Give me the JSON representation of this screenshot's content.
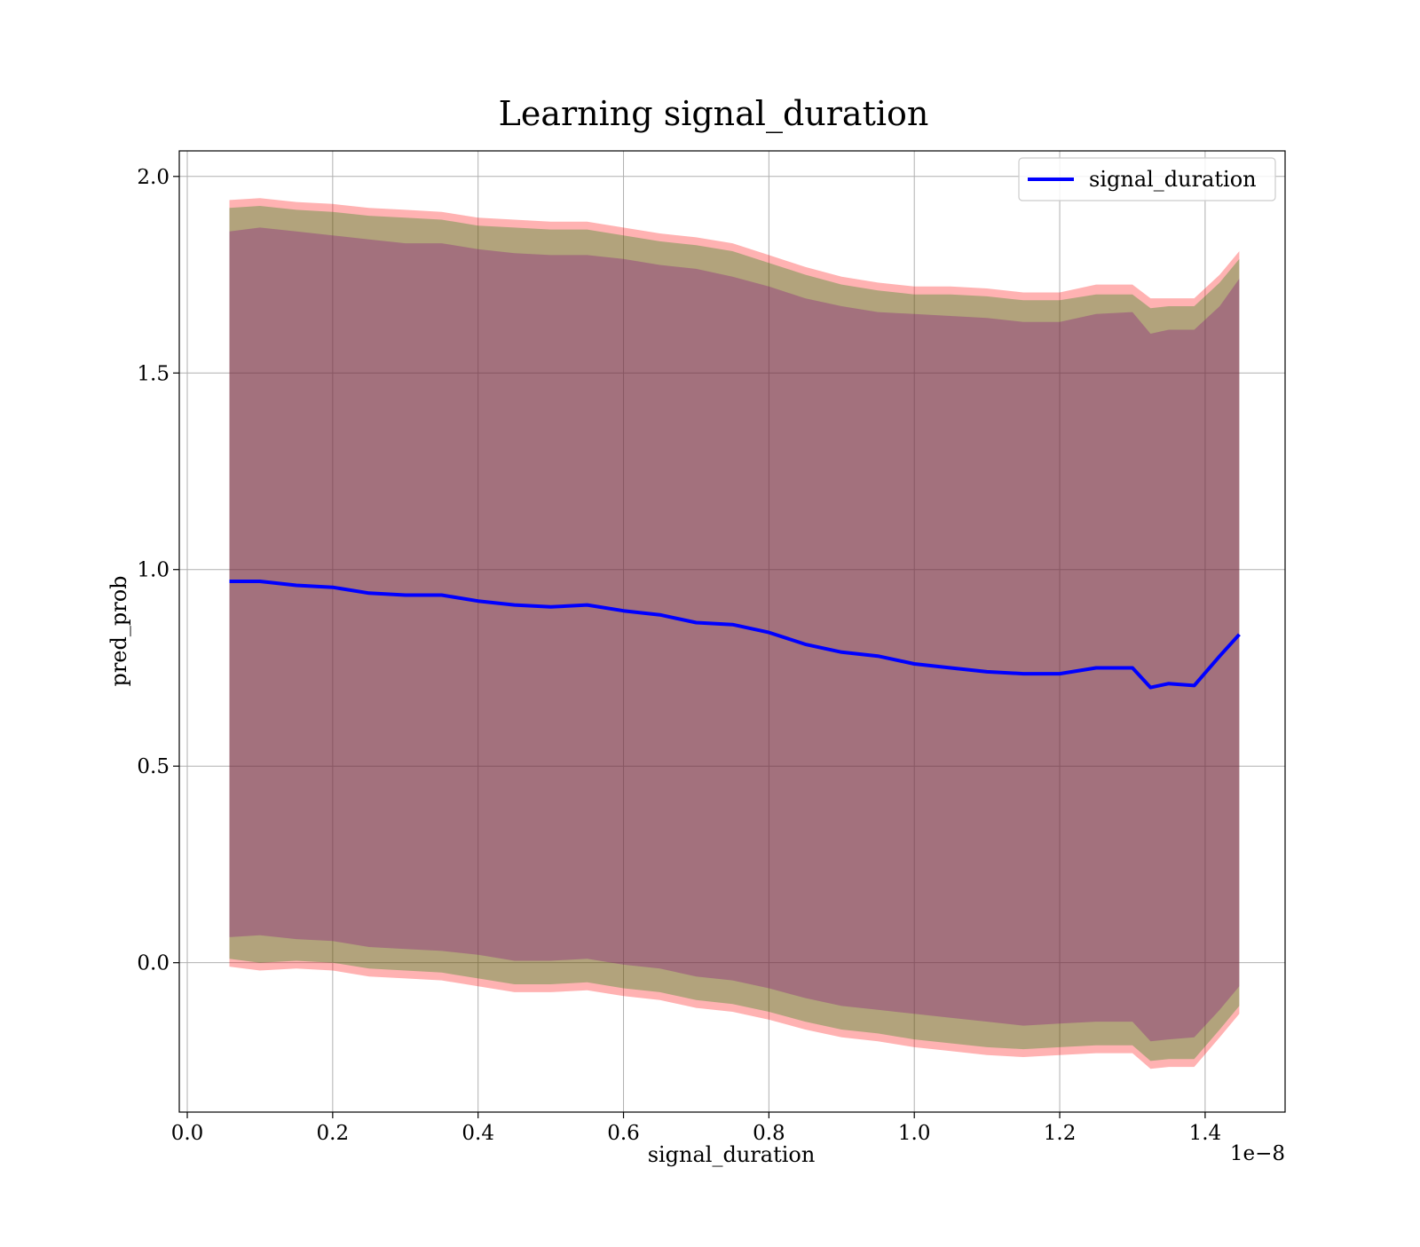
{
  "chart_data": {
    "type": "area",
    "title": "Learning signal_duration",
    "xlabel": "signal_duration",
    "ylabel": "pred_prob",
    "x_offset_text": "1e−8",
    "xlim": [
      -0.011,
      1.51
    ],
    "ylim": [
      -0.38,
      2.065
    ],
    "x_ticks": [
      0.0,
      0.2,
      0.4,
      0.6,
      0.8,
      1.0,
      1.2,
      1.4
    ],
    "x_tick_labels": [
      "0.0",
      "0.2",
      "0.4",
      "0.6",
      "0.8",
      "1.0",
      "1.2",
      "1.4"
    ],
    "y_ticks": [
      0.0,
      0.5,
      1.0,
      1.5,
      2.0
    ],
    "y_tick_labels": [
      "0.0",
      "0.5",
      "1.0",
      "1.5",
      "2.0"
    ],
    "grid": true,
    "legend_position": "top-right",
    "series": [
      {
        "name": "signal_duration",
        "color": "#0000ff",
        "x": [
          0.058,
          0.1,
          0.15,
          0.2,
          0.25,
          0.3,
          0.35,
          0.4,
          0.45,
          0.5,
          0.55,
          0.6,
          0.65,
          0.7,
          0.75,
          0.8,
          0.85,
          0.9,
          0.95,
          1.0,
          1.05,
          1.1,
          1.15,
          1.2,
          1.25,
          1.3,
          1.325,
          1.35,
          1.385,
          1.42,
          1.447
        ],
        "y": [
          0.97,
          0.97,
          0.96,
          0.955,
          0.94,
          0.935,
          0.935,
          0.92,
          0.91,
          0.905,
          0.91,
          0.895,
          0.885,
          0.865,
          0.86,
          0.84,
          0.81,
          0.79,
          0.78,
          0.76,
          0.75,
          0.74,
          0.735,
          0.735,
          0.75,
          0.75,
          0.7,
          0.71,
          0.705,
          0.78,
          0.835
        ]
      }
    ],
    "bands": [
      {
        "color": "#ff0000",
        "opacity": 0.3,
        "x": [
          0.058,
          0.1,
          0.15,
          0.2,
          0.25,
          0.3,
          0.35,
          0.4,
          0.45,
          0.5,
          0.55,
          0.6,
          0.65,
          0.7,
          0.75,
          0.8,
          0.85,
          0.9,
          0.95,
          1.0,
          1.05,
          1.1,
          1.15,
          1.2,
          1.25,
          1.3,
          1.325,
          1.35,
          1.385,
          1.42,
          1.447
        ],
        "upper": [
          1.94,
          1.945,
          1.935,
          1.93,
          1.92,
          1.915,
          1.91,
          1.895,
          1.89,
          1.885,
          1.885,
          1.87,
          1.855,
          1.845,
          1.83,
          1.8,
          1.77,
          1.745,
          1.73,
          1.72,
          1.72,
          1.715,
          1.705,
          1.705,
          1.725,
          1.725,
          1.69,
          1.69,
          1.69,
          1.75,
          1.81
        ],
        "lower": [
          -0.01,
          -0.02,
          -0.015,
          -0.02,
          -0.035,
          -0.04,
          -0.045,
          -0.06,
          -0.075,
          -0.075,
          -0.07,
          -0.085,
          -0.095,
          -0.115,
          -0.125,
          -0.145,
          -0.17,
          -0.19,
          -0.2,
          -0.215,
          -0.225,
          -0.235,
          -0.24,
          -0.235,
          -0.23,
          -0.23,
          -0.27,
          -0.265,
          -0.265,
          -0.19,
          -0.13
        ]
      },
      {
        "color": "#008000",
        "opacity": 0.3,
        "x": [
          0.058,
          0.1,
          0.15,
          0.2,
          0.25,
          0.3,
          0.35,
          0.4,
          0.45,
          0.5,
          0.55,
          0.6,
          0.65,
          0.7,
          0.75,
          0.8,
          0.85,
          0.9,
          0.95,
          1.0,
          1.05,
          1.1,
          1.15,
          1.2,
          1.25,
          1.3,
          1.325,
          1.35,
          1.385,
          1.42,
          1.447
        ],
        "upper": [
          1.92,
          1.925,
          1.915,
          1.91,
          1.9,
          1.895,
          1.89,
          1.875,
          1.87,
          1.865,
          1.865,
          1.85,
          1.835,
          1.825,
          1.81,
          1.78,
          1.75,
          1.725,
          1.71,
          1.7,
          1.7,
          1.695,
          1.685,
          1.685,
          1.7,
          1.7,
          1.665,
          1.67,
          1.67,
          1.73,
          1.79
        ],
        "lower": [
          0.01,
          0.0,
          0.005,
          0.0,
          -0.015,
          -0.02,
          -0.025,
          -0.04,
          -0.055,
          -0.055,
          -0.05,
          -0.065,
          -0.075,
          -0.095,
          -0.105,
          -0.125,
          -0.15,
          -0.17,
          -0.18,
          -0.195,
          -0.205,
          -0.215,
          -0.22,
          -0.215,
          -0.21,
          -0.21,
          -0.25,
          -0.245,
          -0.245,
          -0.17,
          -0.11
        ]
      },
      {
        "color": "#800080",
        "opacity": 0.3,
        "x": [
          0.058,
          0.1,
          0.15,
          0.2,
          0.25,
          0.3,
          0.35,
          0.4,
          0.45,
          0.5,
          0.55,
          0.6,
          0.65,
          0.7,
          0.75,
          0.8,
          0.85,
          0.9,
          0.95,
          1.0,
          1.05,
          1.1,
          1.15,
          1.2,
          1.25,
          1.3,
          1.325,
          1.35,
          1.385,
          1.42,
          1.447
        ],
        "upper": [
          1.86,
          1.87,
          1.86,
          1.85,
          1.84,
          1.83,
          1.83,
          1.815,
          1.805,
          1.8,
          1.8,
          1.79,
          1.775,
          1.765,
          1.745,
          1.72,
          1.69,
          1.67,
          1.655,
          1.65,
          1.645,
          1.64,
          1.63,
          1.63,
          1.65,
          1.655,
          1.6,
          1.61,
          1.61,
          1.67,
          1.74
        ],
        "lower": [
          0.065,
          0.07,
          0.06,
          0.055,
          0.04,
          0.035,
          0.03,
          0.02,
          0.005,
          0.005,
          0.01,
          -0.005,
          -0.015,
          -0.035,
          -0.045,
          -0.065,
          -0.09,
          -0.11,
          -0.12,
          -0.13,
          -0.14,
          -0.15,
          -0.16,
          -0.155,
          -0.15,
          -0.15,
          -0.2,
          -0.195,
          -0.19,
          -0.12,
          -0.06
        ]
      }
    ]
  }
}
